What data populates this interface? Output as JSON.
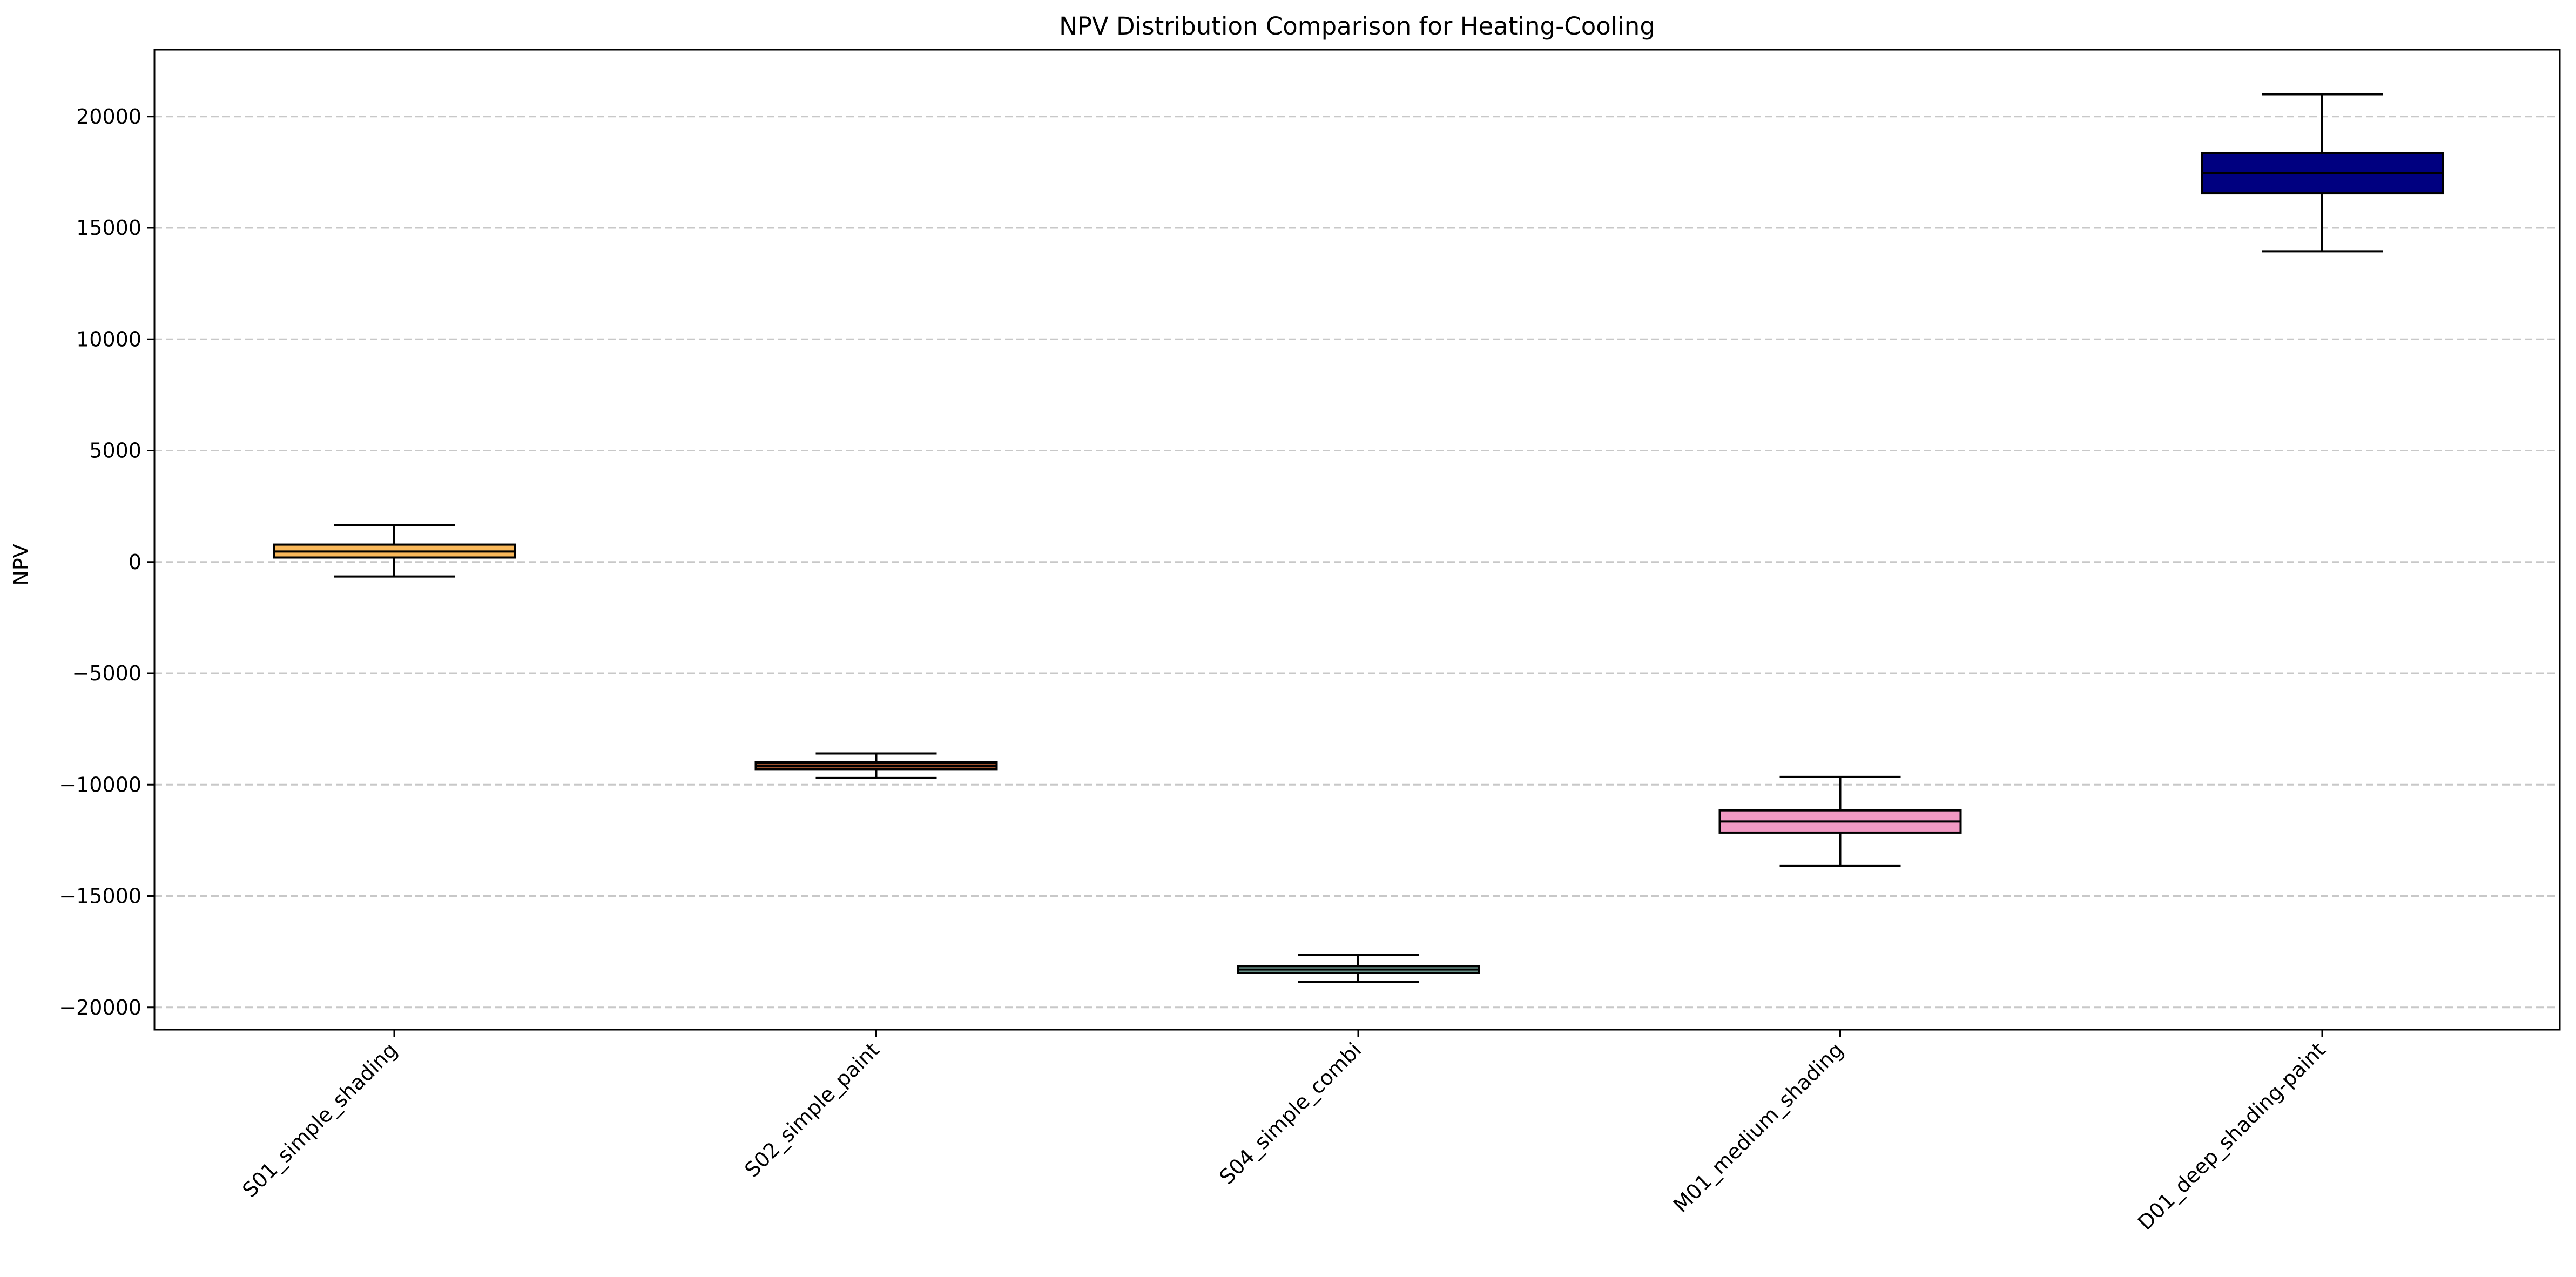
{
  "chart_data": {
    "type": "box",
    "title": "NPV Distribution Comparison for Heating-Cooling",
    "xlabel": "",
    "ylabel": "NPV",
    "ylim": [
      -21000,
      23000
    ],
    "yticks": [
      -20000,
      -15000,
      -10000,
      -5000,
      0,
      5000,
      10000,
      15000,
      20000
    ],
    "ytick_labels": [
      "−20000",
      "−15000",
      "−10000",
      "−5000",
      "0",
      "5000",
      "10000",
      "15000",
      "20000"
    ],
    "grid": {
      "axis": "y",
      "style": "dashed"
    },
    "categories": [
      "S01_simple_shading",
      "S02_simple_paint",
      "S04_simple_combi",
      "M01_medium_shading",
      "D01_deep_shading-paint"
    ],
    "boxes": [
      {
        "category": "S01_simple_shading",
        "whisker_low": -650,
        "q1": 200,
        "median": 470,
        "q3": 780,
        "whisker_high": 1650,
        "color": "#f9b85a"
      },
      {
        "category": "S02_simple_paint",
        "whisker_low": -9700,
        "q1": -9300,
        "median": -9150,
        "q3": -9000,
        "whisker_high": -8600,
        "color": "#a0522d"
      },
      {
        "category": "S04_simple_combi",
        "whisker_low": -18850,
        "q1": -18450,
        "median": -18300,
        "q3": -18150,
        "whisker_high": -17650,
        "color": "#7fb3a8"
      },
      {
        "category": "M01_medium_shading",
        "whisker_low": -13650,
        "q1": -12150,
        "median": -11650,
        "q3": -11150,
        "whisker_high": -9650,
        "color": "#f29ac4"
      },
      {
        "category": "D01_deep_shading-paint",
        "whisker_low": 13950,
        "q1": 16550,
        "median": 17450,
        "q3": 18350,
        "whisker_high": 21000,
        "color": "#000080"
      }
    ]
  }
}
